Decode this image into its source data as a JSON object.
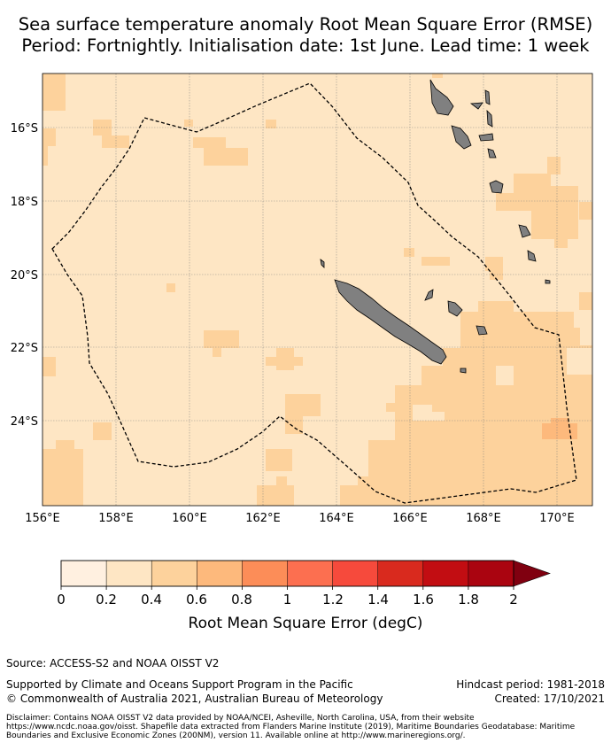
{
  "title_line1": "Sea surface temperature anomaly Root Mean Square Error (RMSE)",
  "title_line2": "Period: Fortnightly. Initialisation date: 1st June. Lead time: 1 week",
  "map": {
    "lon_ticks": [
      "156°E",
      "158°E",
      "160°E",
      "162°E",
      "164°E",
      "166°E",
      "168°E",
      "170°E"
    ],
    "lat_ticks": [
      "16°S",
      "18°S",
      "20°S",
      "22°S",
      "24°S"
    ],
    "lon_range": [
      156,
      171
    ],
    "lat_range": [
      -26.2,
      -14.7
    ],
    "background_color": "#fee6c4",
    "land_color": "#808080",
    "boundary_style": "dashed black (maritime boundary)"
  },
  "colorbar": {
    "title": "Root Mean Square Error (degC)",
    "ticks": [
      "0",
      "0.2",
      "0.4",
      "0.6",
      "0.8",
      "1",
      "1.2",
      "1.4",
      "1.6",
      "1.8",
      "2"
    ],
    "colors": [
      "#fff0e0",
      "#fee6c4",
      "#fdd29c",
      "#fdb97c",
      "#fc8d58",
      "#fc6f50",
      "#f64a3c",
      "#d92a1e",
      "#c20d12",
      "#aa0410",
      "#800010"
    ],
    "extend": "max"
  },
  "footer": {
    "source": "Source: ACCESS-S2 and NOAA OISST V2",
    "support": "Supported by Climate and Oceans Support Program in the Pacific",
    "copyright": "© Commonwealth of Australia 2021, Australian Bureau of Meteorology",
    "hindcast": "Hindcast period: 1981-2018",
    "created": "Created: 17/10/2021",
    "disclaimer": "Disclaimer: Contains NOAA OISST V2 data provided by NOAA/NCEI, Asheville, North Carolina, USA, from their website https://www.ncdc.noaa.gov/oisst. Shapefile data extracted from Flanders Marine Institute (2019), Maritime Boundaries Geodatabase: Maritime Boundaries and Exclusive Economic Zones (200NM), version 11. Available online at http://www.marineregions.org/."
  }
}
